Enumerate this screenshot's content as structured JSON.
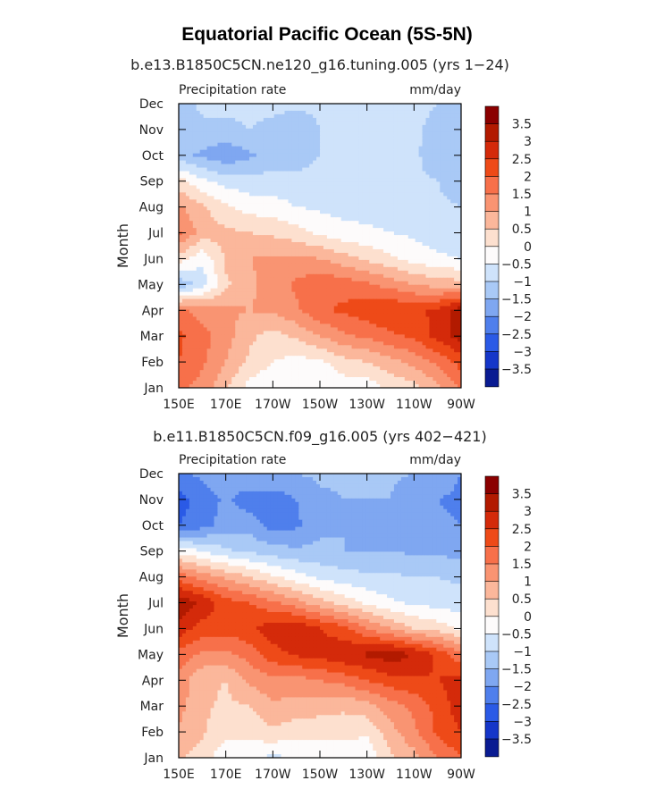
{
  "figure": {
    "title": "Equatorial Pacific Ocean (5S-5N)"
  },
  "colorbar": {
    "labels": [
      "3.5",
      "3",
      "2.5",
      "2",
      "1.5",
      "1",
      "0.5",
      "0",
      "−0.5",
      "−1",
      "−1.5",
      "−2",
      "−2.5",
      "−3",
      "−3.5"
    ],
    "colors": [
      "#8b0000",
      "#b21a00",
      "#d42a0a",
      "#ee4a18",
      "#f7704a",
      "#f99472",
      "#fbb79b",
      "#fde0cf",
      "#fdfbfb",
      "#cfe3fb",
      "#a9c9f6",
      "#7fa7f1",
      "#4f7fec",
      "#2a5ae6",
      "#1536c9",
      "#0a1b92"
    ]
  },
  "chart_data": [
    {
      "type": "heatmap",
      "title": "b.e13.B1850C5CN.ne120_g16.tuning.005 (yrs 1−24)",
      "left_label": "Precipitation rate",
      "right_label": "mm/day",
      "ylabel": "Month",
      "xlabel": "",
      "x_ticks": [
        "150E",
        "170E",
        "170W",
        "150W",
        "130W",
        "110W",
        "90W"
      ],
      "y_ticks": [
        "Jan",
        "Feb",
        "Mar",
        "Apr",
        "May",
        "Jun",
        "Jul",
        "Aug",
        "Sep",
        "Oct",
        "Nov",
        "Dec"
      ],
      "columns": [
        "150E",
        "160E",
        "170E",
        "180",
        "170W",
        "160W",
        "150W",
        "140W",
        "130W",
        "120W",
        "110W",
        "100W",
        "90W"
      ],
      "values": [
        [
          1.6,
          1.3,
          0.6,
          -0.2,
          -0.5,
          -0.5,
          -0.5,
          -0.3,
          -0.3,
          0.1,
          0.3,
          0.9,
          1.6
        ],
        [
          2.0,
          1.6,
          1.0,
          0.4,
          0.0,
          -0.2,
          -0.1,
          0.3,
          0.5,
          0.8,
          1.2,
          1.6,
          2.2
        ],
        [
          2.1,
          1.7,
          1.2,
          0.6,
          0.3,
          0.6,
          1.0,
          1.4,
          1.6,
          1.9,
          2.1,
          2.7,
          3.2
        ],
        [
          1.6,
          1.3,
          1.1,
          1.0,
          1.1,
          1.4,
          1.9,
          2.1,
          2.3,
          2.5,
          2.4,
          2.6,
          3.3
        ],
        [
          -1.4,
          -0.8,
          0.4,
          0.9,
          1.2,
          1.6,
          1.9,
          1.8,
          1.6,
          1.3,
          1.0,
          0.8,
          0.7
        ],
        [
          0.3,
          -0.4,
          0.6,
          1.0,
          1.1,
          1.1,
          1.0,
          0.7,
          0.4,
          0.1,
          -0.2,
          -0.4,
          -0.5
        ],
        [
          1.6,
          0.8,
          0.6,
          0.5,
          0.4,
          0.2,
          -0.1,
          -0.3,
          -0.4,
          -0.5,
          -0.6,
          -0.8,
          -0.9
        ],
        [
          1.1,
          0.6,
          0.1,
          -0.2,
          -0.3,
          -0.5,
          -0.6,
          -0.7,
          -0.7,
          -0.7,
          -0.8,
          -0.9,
          -1.0
        ],
        [
          0.2,
          -0.4,
          -0.7,
          -0.8,
          -0.8,
          -0.8,
          -0.8,
          -0.8,
          -0.8,
          -0.8,
          -0.9,
          -1.0,
          -1.3
        ],
        [
          -1.3,
          -1.6,
          -1.9,
          -1.6,
          -1.3,
          -1.3,
          -1.0,
          -0.8,
          -0.8,
          -0.8,
          -0.9,
          -1.3,
          -1.4
        ],
        [
          -1.4,
          -1.1,
          -1.1,
          -1.0,
          -1.1,
          -1.3,
          -1.0,
          -0.8,
          -0.8,
          -0.8,
          -0.9,
          -1.2,
          -1.4
        ],
        [
          -1.2,
          -0.9,
          -0.9,
          -0.9,
          -0.9,
          -0.9,
          -0.9,
          -0.8,
          -0.8,
          -0.8,
          -0.8,
          -1.0,
          -1.2
        ]
      ],
      "zlim": [
        -3.5,
        3.5
      ]
    },
    {
      "type": "heatmap",
      "title": "b.e11.B1850C5CN.f09_g16.005 (yrs 402−421)",
      "left_label": "Precipitation rate",
      "right_label": "mm/day",
      "ylabel": "Month",
      "xlabel": "",
      "x_ticks": [
        "150E",
        "170E",
        "170W",
        "150W",
        "130W",
        "110W",
        "90W"
      ],
      "y_ticks": [
        "Jan",
        "Feb",
        "Mar",
        "Apr",
        "May",
        "Jun",
        "Jul",
        "Aug",
        "Sep",
        "Oct",
        "Nov",
        "Dec"
      ],
      "columns": [
        "150E",
        "160E",
        "170E",
        "180",
        "170W",
        "160W",
        "150W",
        "140W",
        "130W",
        "120W",
        "110W",
        "100W",
        "90W"
      ],
      "values": [
        [
          0.6,
          0.2,
          -0.3,
          -0.4,
          -0.6,
          -0.5,
          -0.5,
          -0.4,
          -0.4,
          0.4,
          0.8,
          1.5,
          2.0
        ],
        [
          0.9,
          0.6,
          0.1,
          0.2,
          0.4,
          0.2,
          0.2,
          0.2,
          0.1,
          0.8,
          1.4,
          2.1,
          2.5
        ],
        [
          1.2,
          0.6,
          0.4,
          0.5,
          0.9,
          0.8,
          0.7,
          0.6,
          0.8,
          1.3,
          1.6,
          2.2,
          2.8
        ],
        [
          1.3,
          0.6,
          0.5,
          1.1,
          1.4,
          1.3,
          1.5,
          1.7,
          2.0,
          2.3,
          2.4,
          2.5,
          2.7
        ],
        [
          1.8,
          1.4,
          1.4,
          1.7,
          2.3,
          2.6,
          2.7,
          2.9,
          3.1,
          3.3,
          3.0,
          2.4,
          1.6
        ],
        [
          2.8,
          2.3,
          2.2,
          2.4,
          2.8,
          3.0,
          2.5,
          2.2,
          1.5,
          1.0,
          0.5,
          0.3,
          -0.1
        ],
        [
          3.4,
          2.9,
          2.2,
          2.0,
          1.6,
          1.2,
          0.7,
          0.3,
          -0.1,
          -0.4,
          -0.6,
          -0.7,
          -0.8
        ],
        [
          1.8,
          1.3,
          0.9,
          0.5,
          0.1,
          -0.3,
          -0.6,
          -0.8,
          -0.9,
          -0.9,
          -1.0,
          -1.0,
          -1.1
        ],
        [
          -0.2,
          -0.5,
          -0.9,
          -1.1,
          -1.3,
          -1.4,
          -1.4,
          -1.5,
          -1.5,
          -1.5,
          -1.6,
          -1.6,
          -1.7
        ],
        [
          -2.5,
          -2.2,
          -1.8,
          -1.7,
          -2.2,
          -2.1,
          -1.6,
          -1.5,
          -1.9,
          -1.6,
          -1.9,
          -1.9,
          -2.0
        ],
        [
          -2.7,
          -2.3,
          -1.9,
          -2.3,
          -2.3,
          -2.0,
          -1.6,
          -1.5,
          -1.5,
          -1.5,
          -1.9,
          -2.0,
          -2.1
        ],
        [
          -2.1,
          -1.9,
          -1.6,
          -1.5,
          -1.5,
          -1.5,
          -1.4,
          -1.4,
          -1.4,
          -1.4,
          -1.5,
          -1.7,
          -2.0
        ]
      ],
      "zlim": [
        -3.5,
        3.5
      ]
    }
  ]
}
